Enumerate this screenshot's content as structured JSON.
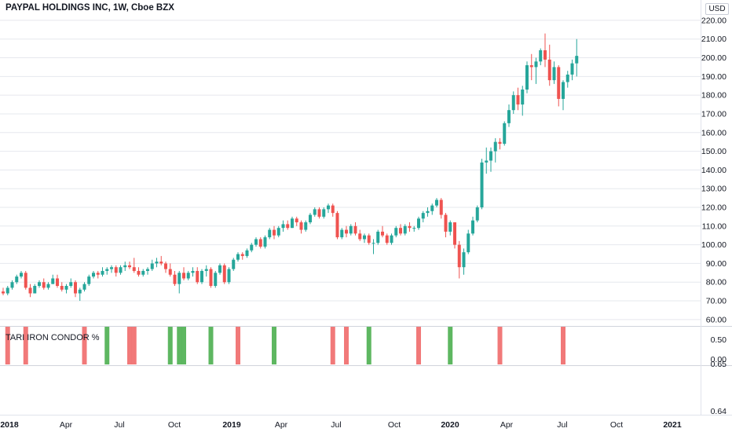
{
  "header": {
    "title": "PAYPAL HOLDINGS INC, 1W, Cboe BZX",
    "currency": "USD"
  },
  "indicator": {
    "label": "TARI IRON CONDOR %"
  },
  "colors": {
    "up": "#26a69a",
    "down": "#ef5350",
    "signal_green": "#4caf50",
    "signal_red": "#f06a6a",
    "grid": "#e6e8ee",
    "axis_text": "#131722"
  },
  "chart_data": [
    {
      "type": "candlestick",
      "title": "PAYPAL HOLDINGS INC, 1W, Cboe BZX",
      "ylabel": "USD",
      "ylim": [
        57,
        225
      ],
      "y_ticks": [
        "60.00",
        "70.00",
        "80.00",
        "90.00",
        "100.00",
        "110.00",
        "120.00",
        "130.00",
        "140.00",
        "150.00",
        "160.00",
        "170.00",
        "180.00",
        "190.00",
        "200.00",
        "210.00",
        "220.00"
      ],
      "x_ticks": [
        "2018",
        "Apr",
        "Jul",
        "Oct",
        "2019",
        "Apr",
        "Jul",
        "Oct",
        "2020",
        "Apr",
        "Jul",
        "Oct",
        "2021"
      ],
      "series": [
        {
          "values": [
            [
              75,
              77,
              73,
              74
            ],
            [
              74,
              78,
              73,
              77
            ],
            [
              77,
              81,
              76,
              80
            ],
            [
              80,
              84,
              79,
              83
            ],
            [
              83,
              86,
              82,
              85
            ],
            [
              85,
              86,
              76,
              77
            ],
            [
              77,
              79,
              72,
              74
            ],
            [
              74,
              79,
              74,
              78
            ],
            [
              78,
              81,
              77,
              80
            ],
            [
              80,
              82,
              76,
              77
            ],
            [
              77,
              80,
              76,
              79
            ],
            [
              79,
              84,
              79,
              82
            ],
            [
              82,
              84,
              77,
              78
            ],
            [
              78,
              80,
              75,
              76
            ],
            [
              76,
              79,
              74,
              78
            ],
            [
              78,
              82,
              77,
              80
            ],
            [
              80,
              81,
              72,
              74
            ],
            [
              74,
              77,
              70,
              76
            ],
            [
              76,
              80,
              75,
              79
            ],
            [
              79,
              84,
              78,
              83
            ],
            [
              83,
              86,
              82,
              85
            ],
            [
              85,
              86,
              82,
              84
            ],
            [
              84,
              88,
              83,
              86
            ],
            [
              86,
              88,
              84,
              87
            ],
            [
              87,
              89,
              85,
              88
            ],
            [
              88,
              89,
              83,
              85
            ],
            [
              85,
              89,
              84,
              88
            ],
            [
              88,
              91,
              86,
              89
            ],
            [
              89,
              91,
              87,
              88
            ],
            [
              88,
              93,
              85,
              86
            ],
            [
              86,
              88,
              83,
              84
            ],
            [
              84,
              87,
              83,
              86
            ],
            [
              86,
              88,
              84,
              87
            ],
            [
              87,
              92,
              86,
              90
            ],
            [
              90,
              93,
              88,
              91
            ],
            [
              91,
              94,
              89,
              90
            ],
            [
              90,
              91,
              85,
              87
            ],
            [
              87,
              90,
              83,
              84
            ],
            [
              84,
              86,
              78,
              79
            ],
            [
              79,
              86,
              74,
              85
            ],
            [
              85,
              88,
              81,
              82
            ],
            [
              82,
              86,
              81,
              85
            ],
            [
              85,
              88,
              83,
              86
            ],
            [
              86,
              88,
              79,
              80
            ],
            [
              80,
              87,
              79,
              86
            ],
            [
              86,
              89,
              83,
              87
            ],
            [
              87,
              88,
              77,
              78
            ],
            [
              78,
              86,
              77,
              85
            ],
            [
              85,
              90,
              84,
              89
            ],
            [
              89,
              90,
              79,
              80
            ],
            [
              80,
              88,
              79,
              87
            ],
            [
              87,
              93,
              86,
              92
            ],
            [
              92,
              96,
              91,
              95
            ],
            [
              95,
              96,
              92,
              94
            ],
            [
              94,
              98,
              93,
              97
            ],
            [
              97,
              101,
              96,
              100
            ],
            [
              100,
              104,
              99,
              103
            ],
            [
              103,
              104,
              98,
              99
            ],
            [
              99,
              105,
              98,
              104
            ],
            [
              104,
              109,
              103,
              108
            ],
            [
              108,
              110,
              103,
              105
            ],
            [
              105,
              110,
              104,
              109
            ],
            [
              109,
              113,
              107,
              111
            ],
            [
              111,
              113,
              108,
              109
            ],
            [
              109,
              115,
              109,
              114
            ],
            [
              114,
              115,
              110,
              112
            ],
            [
              112,
              113,
              106,
              108
            ],
            [
              108,
              113,
              107,
              112
            ],
            [
              112,
              117,
              111,
              116
            ],
            [
              116,
              120,
              115,
              119
            ],
            [
              119,
              120,
              114,
              115
            ],
            [
              115,
              120,
              114,
              119
            ],
            [
              119,
              122,
              117,
              121
            ],
            [
              121,
              122,
              115,
              117
            ],
            [
              117,
              118,
              103,
              104
            ],
            [
              104,
              109,
              103,
              108
            ],
            [
              108,
              110,
              104,
              106
            ],
            [
              106,
              111,
              105,
              110
            ],
            [
              110,
              112,
              105,
              106
            ],
            [
              106,
              108,
              102,
              103
            ],
            [
              103,
              106,
              101,
              105
            ],
            [
              105,
              106,
              100,
              101
            ],
            [
              101,
              103,
              95,
              101
            ],
            [
              101,
              108,
              100,
              107
            ],
            [
              107,
              110,
              104,
              105
            ],
            [
              105,
              106,
              100,
              101
            ],
            [
              101,
              106,
              100,
              105
            ],
            [
              105,
              110,
              104,
              109
            ],
            [
              109,
              111,
              105,
              106
            ],
            [
              106,
              111,
              105,
              110
            ],
            [
              110,
              112,
              107,
              109
            ],
            [
              109,
              110,
              107,
              109
            ],
            [
              109,
              115,
              108,
              114
            ],
            [
              114,
              118,
              112,
              117
            ],
            [
              117,
              120,
              115,
              118
            ],
            [
              118,
              122,
              116,
              121
            ],
            [
              121,
              125,
              120,
              124
            ],
            [
              124,
              125,
              114,
              116
            ],
            [
              116,
              117,
              104,
              107
            ],
            [
              107,
              113,
              105,
              112
            ],
            [
              112,
              112,
              98,
              100
            ],
            [
              100,
              102,
              82,
              88
            ],
            [
              88,
              98,
              84,
              96
            ],
            [
              96,
              108,
              95,
              106
            ],
            [
              106,
              115,
              105,
              113
            ],
            [
              113,
              121,
              112,
              120
            ],
            [
              120,
              146,
              119,
              144
            ],
            [
              144,
              152,
              138,
              145
            ],
            [
              145,
              152,
              139,
              150
            ],
            [
              150,
              157,
              144,
              155
            ],
            [
              155,
              157,
              151,
              154
            ],
            [
              154,
              166,
              153,
              165
            ],
            [
              165,
              175,
              163,
              172
            ],
            [
              172,
              182,
              170,
              180
            ],
            [
              180,
              184,
              172,
              175
            ],
            [
              175,
              185,
              169,
              183
            ],
            [
              183,
              198,
              181,
              196
            ],
            [
              196,
              202,
              188,
              195
            ],
            [
              195,
              200,
              186,
              198
            ],
            [
              198,
              205,
              196,
              204
            ],
            [
              204,
              213,
              195,
              199
            ],
            [
              199,
              207,
              185,
              188
            ],
            [
              188,
              198,
              186,
              195
            ],
            [
              195,
              196,
              174,
              178
            ],
            [
              178,
              188,
              172,
              187
            ],
            [
              187,
              193,
              184,
              191
            ],
            [
              191,
              199,
              188,
              197
            ],
            [
              197,
              210,
              190,
              201
            ]
          ]
        }
      ]
    },
    {
      "type": "bar",
      "title": "TARI IRON CONDOR %",
      "y_ticks": [
        "0.50",
        "0.00",
        "0.65",
        "0.64"
      ],
      "signals": [
        {
          "index": 1,
          "signal": "red"
        },
        {
          "index": 5,
          "signal": "red"
        },
        {
          "index": 18,
          "signal": "red"
        },
        {
          "index": 23,
          "signal": "green"
        },
        {
          "index": 28,
          "signal": "red"
        },
        {
          "index": 29,
          "signal": "red"
        },
        {
          "index": 37,
          "signal": "green"
        },
        {
          "index": 39,
          "signal": "green"
        },
        {
          "index": 40,
          "signal": "green"
        },
        {
          "index": 46,
          "signal": "green"
        },
        {
          "index": 52,
          "signal": "red"
        },
        {
          "index": 60,
          "signal": "green"
        },
        {
          "index": 73,
          "signal": "red"
        },
        {
          "index": 76,
          "signal": "red"
        },
        {
          "index": 81,
          "signal": "green"
        },
        {
          "index": 92,
          "signal": "red"
        },
        {
          "index": 99,
          "signal": "green"
        },
        {
          "index": 110,
          "signal": "red"
        },
        {
          "index": 124,
          "signal": "red"
        }
      ]
    }
  ]
}
